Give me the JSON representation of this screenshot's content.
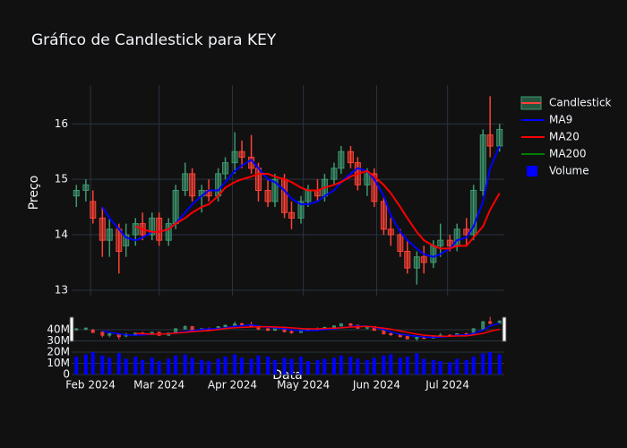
{
  "chart_data": {
    "type": "candlestick",
    "title": "Gráfico de Candlestick para KEY",
    "xlabel": "Data",
    "ylabel": "Preço",
    "x": [
      "2024-01-26",
      "2024-01-30",
      "2024-02-02",
      "2024-02-06",
      "2024-02-09",
      "2024-02-13",
      "2024-02-16",
      "2024-02-20",
      "2024-02-23",
      "2024-02-27",
      "2024-03-01",
      "2024-03-05",
      "2024-03-08",
      "2024-03-12",
      "2024-03-15",
      "2024-03-19",
      "2024-03-22",
      "2024-03-26",
      "2024-03-29",
      "2024-04-02",
      "2024-04-05",
      "2024-04-09",
      "2024-04-12",
      "2024-04-16",
      "2024-04-19",
      "2024-04-23",
      "2024-04-26",
      "2024-04-30",
      "2024-05-03",
      "2024-05-07",
      "2024-05-10",
      "2024-05-14",
      "2024-05-17",
      "2024-05-21",
      "2024-05-24",
      "2024-05-28",
      "2024-05-31",
      "2024-06-04",
      "2024-06-07",
      "2024-06-11",
      "2024-06-14",
      "2024-06-18",
      "2024-06-21",
      "2024-06-25",
      "2024-06-28",
      "2024-07-02",
      "2024-07-05",
      "2024-07-09",
      "2024-07-12",
      "2024-07-16",
      "2024-07-19",
      "2024-07-23"
    ],
    "xlim": [
      "2024-01-24",
      "2024-07-25"
    ],
    "xticks": [
      {
        "value": "2024-02-01",
        "label": "Feb 2024"
      },
      {
        "value": "2024-03-01",
        "label": "Mar 2024"
      },
      {
        "value": "2024-04-01",
        "label": "Apr 2024"
      },
      {
        "value": "2024-05-01",
        "label": "May 2024"
      },
      {
        "value": "2024-06-01",
        "label": "Jun 2024"
      },
      {
        "value": "2024-07-01",
        "label": "Jul 2024"
      }
    ],
    "ylim": [
      12.9,
      16.7
    ],
    "yticks": [
      13,
      14,
      15,
      16
    ],
    "grid": true,
    "candles": {
      "name": "Candlestick",
      "increasing_color": "#3D9970",
      "decreasing_color": "#FF4136",
      "open": [
        14.7,
        14.8,
        14.6,
        14.3,
        13.9,
        14.1,
        13.8,
        14.0,
        14.2,
        14.0,
        14.3,
        13.9,
        14.2,
        14.8,
        15.1,
        14.7,
        14.8,
        14.7,
        15.1,
        15.3,
        15.5,
        15.4,
        15.2,
        14.8,
        14.6,
        15.0,
        14.4,
        14.3,
        14.6,
        14.8,
        14.7,
        15.0,
        15.2,
        15.5,
        15.3,
        14.9,
        15.1,
        14.6,
        14.1,
        14.0,
        13.7,
        13.4,
        13.6,
        13.5,
        13.8,
        13.9,
        13.8,
        14.1,
        14.0,
        14.8,
        15.8,
        15.6
      ],
      "high": [
        14.9,
        15.0,
        14.8,
        14.5,
        14.3,
        14.2,
        14.2,
        14.3,
        14.4,
        14.4,
        14.4,
        14.3,
        14.9,
        15.3,
        15.2,
        14.9,
        15.0,
        15.2,
        15.4,
        15.85,
        15.7,
        15.8,
        15.3,
        15.0,
        15.1,
        15.1,
        14.6,
        14.7,
        14.9,
        15.0,
        15.1,
        15.3,
        15.6,
        15.6,
        15.4,
        15.2,
        15.2,
        14.7,
        14.3,
        14.1,
        13.9,
        13.7,
        13.8,
        13.9,
        14.2,
        14.0,
        14.2,
        14.3,
        14.9,
        15.9,
        16.5,
        16.0
      ],
      "low": [
        14.5,
        14.6,
        14.2,
        13.6,
        13.6,
        13.3,
        13.6,
        13.8,
        13.9,
        13.9,
        13.8,
        13.8,
        14.1,
        14.7,
        14.6,
        14.4,
        14.6,
        14.6,
        15.0,
        15.1,
        15.2,
        15.1,
        14.6,
        14.5,
        14.5,
        14.3,
        14.1,
        14.2,
        14.5,
        14.6,
        14.6,
        14.9,
        15.1,
        15.2,
        14.8,
        14.7,
        14.5,
        14.0,
        13.8,
        13.6,
        13.3,
        13.1,
        13.3,
        13.4,
        13.6,
        13.7,
        13.7,
        13.8,
        13.9,
        14.7,
        15.4,
        15.5
      ],
      "close": [
        14.8,
        14.9,
        14.3,
        13.9,
        14.1,
        13.7,
        14.0,
        14.2,
        14.0,
        14.3,
        13.9,
        14.2,
        14.8,
        15.1,
        14.7,
        14.8,
        14.7,
        15.1,
        15.3,
        15.5,
        15.4,
        15.2,
        14.8,
        14.6,
        15.0,
        14.4,
        14.3,
        14.6,
        14.8,
        14.7,
        15.0,
        15.2,
        15.5,
        15.3,
        14.9,
        15.1,
        14.6,
        14.1,
        14.0,
        13.7,
        13.4,
        13.6,
        13.5,
        13.8,
        13.9,
        13.8,
        14.1,
        14.0,
        14.8,
        15.8,
        15.6,
        15.9
      ]
    },
    "series": [
      {
        "name": "MA9",
        "color": "#0000ff",
        "values": [
          null,
          null,
          null,
          14.5,
          14.3,
          14.1,
          13.95,
          13.9,
          13.95,
          14.05,
          14.05,
          14.1,
          14.2,
          14.4,
          14.55,
          14.7,
          14.8,
          14.8,
          14.95,
          15.15,
          15.25,
          15.35,
          15.2,
          15.0,
          14.95,
          14.8,
          14.65,
          14.55,
          14.55,
          14.6,
          14.7,
          14.8,
          14.95,
          15.1,
          15.2,
          15.15,
          15.0,
          14.7,
          14.35,
          14.05,
          13.9,
          13.75,
          13.65,
          13.6,
          13.65,
          13.75,
          13.9,
          13.95,
          14.15,
          14.6,
          15.2,
          15.6
        ]
      },
      {
        "name": "MA20",
        "color": "#ff0000",
        "values": [
          null,
          null,
          null,
          null,
          null,
          null,
          null,
          14.15,
          14.1,
          14.05,
          14.05,
          14.1,
          14.2,
          14.3,
          14.4,
          14.5,
          14.55,
          14.7,
          14.85,
          14.95,
          15.0,
          15.05,
          15.1,
          15.1,
          15.05,
          15.0,
          14.95,
          14.85,
          14.8,
          14.8,
          14.85,
          14.9,
          14.95,
          15.05,
          15.1,
          15.15,
          15.05,
          14.9,
          14.75,
          14.5,
          14.3,
          14.05,
          13.9,
          13.8,
          13.75,
          13.75,
          13.8,
          13.8,
          13.95,
          14.15,
          14.45,
          14.75
        ]
      },
      {
        "name": "MA200",
        "color": "#008000",
        "values": [
          null,
          null,
          null,
          null,
          null,
          null,
          null,
          null,
          null,
          null,
          null,
          null,
          null,
          null,
          null,
          null,
          null,
          null,
          null,
          null,
          null,
          null,
          null,
          null,
          null,
          null,
          null,
          null,
          null,
          null,
          null,
          null,
          null,
          null,
          null,
          null,
          null,
          null,
          null,
          null,
          null,
          null,
          null,
          null,
          null,
          null,
          null,
          null,
          null,
          null,
          null,
          null
        ]
      }
    ],
    "volume": {
      "name": "Volume",
      "color": "#0000ff",
      "values": [
        16000000,
        18000000,
        20000000,
        17000000,
        15000000,
        19000000,
        14000000,
        16000000,
        13000000,
        15000000,
        12000000,
        14000000,
        17000000,
        18000000,
        15000000,
        13000000,
        12000000,
        14000000,
        16000000,
        18000000,
        15000000,
        14000000,
        17000000,
        16000000,
        13000000,
        15000000,
        14000000,
        16000000,
        12000000,
        13000000,
        14000000,
        15000000,
        17000000,
        16000000,
        14000000,
        13000000,
        15000000,
        17000000,
        18000000,
        15000000,
        16000000,
        19000000,
        14000000,
        13000000,
        12000000,
        11000000,
        14000000,
        13000000,
        16000000,
        19000000,
        20000000,
        18000000
      ],
      "ylim": [
        0,
        50000000
      ],
      "yticks": [
        0,
        {
          "value": 10000000,
          "label": "10M"
        },
        {
          "value": 20000000,
          "label": "20M"
        },
        {
          "value": 30000000,
          "label": "30M"
        },
        {
          "value": 40000000,
          "label": "40M"
        }
      ]
    }
  }
}
